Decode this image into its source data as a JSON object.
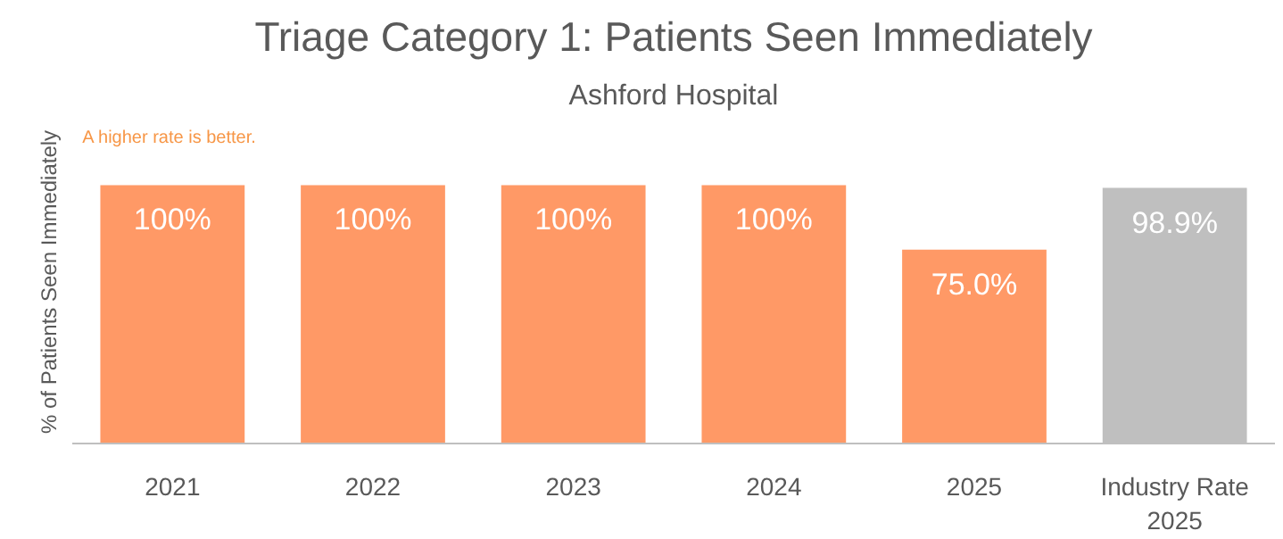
{
  "chart_data": {
    "type": "bar",
    "title": "Triage Category 1: Patients Seen Immediately",
    "subtitle": "Ashford Hospital",
    "ylabel": "% of Patients Seen Immediately",
    "annotations": [
      "A higher rate is better."
    ],
    "categories": [
      "2021",
      "2022",
      "2023",
      "2024",
      "2025",
      "Industry Rate 2025"
    ],
    "values": [
      100,
      100,
      100,
      100,
      75.0,
      98.9
    ],
    "value_labels": [
      "100%",
      "100%",
      "100%",
      "100%",
      "75.0%",
      "98.9%"
    ],
    "colors": [
      "#ff9966",
      "#ff9966",
      "#ff9966",
      "#ff9966",
      "#ff9966",
      "#bfbfbf"
    ],
    "grid": false
  }
}
